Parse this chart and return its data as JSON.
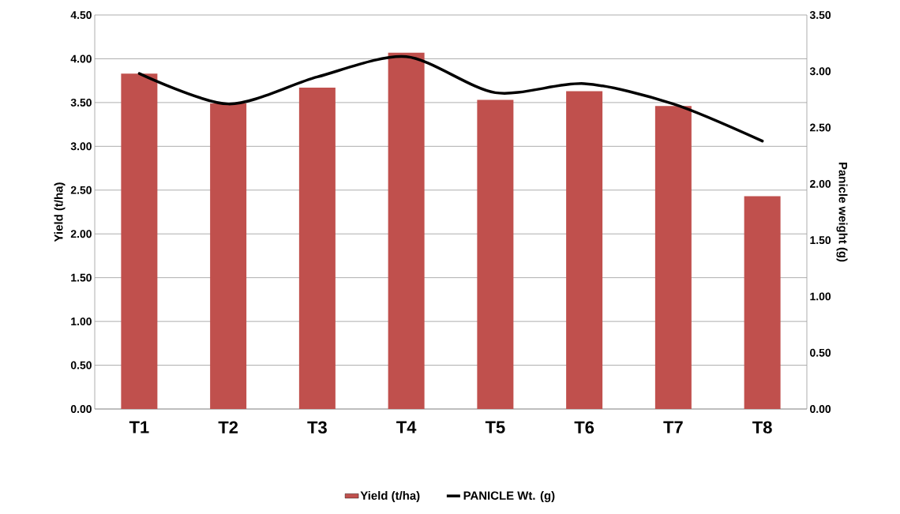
{
  "chart_data": {
    "type": "bar",
    "categories": [
      "T1",
      "T2",
      "T3",
      "T4",
      "T5",
      "T6",
      "T7",
      "T8"
    ],
    "series": [
      {
        "name": "Yield (t/ha)",
        "color": "#c0504d",
        "values": [
          3.83,
          3.49,
          3.67,
          4.07,
          3.53,
          3.63,
          3.46,
          2.43
        ]
      },
      {
        "name": "PANICLE Wt. (g)",
        "type": "line",
        "axis": "y2",
        "color": "#000000",
        "values": [
          2.98,
          2.71,
          2.95,
          3.13,
          2.81,
          2.89,
          2.71,
          2.38
        ]
      }
    ],
    "ylabel": "Yield (t/ha)",
    "y2label": "Panicle weight (g)",
    "ylim": [
      0,
      4.5
    ],
    "yticks": [
      {
        "value": 0,
        "label": "0.00"
      },
      {
        "value": 0.5,
        "label": "0.50"
      },
      {
        "value": 1,
        "label": "1.00"
      },
      {
        "value": 1.5,
        "label": "1.50"
      },
      {
        "value": 2,
        "label": "2.00"
      },
      {
        "value": 2.5,
        "label": "2.50"
      },
      {
        "value": 3,
        "label": "3.00"
      },
      {
        "value": 3.5,
        "label": "3.50"
      },
      {
        "value": 4,
        "label": "4.00"
      },
      {
        "value": 4.5,
        "label": "4.50"
      }
    ],
    "y2lim": [
      0,
      3.5
    ],
    "y2ticks": [
      {
        "value": 0,
        "label": "0.00"
      },
      {
        "value": 0.5,
        "label": "0.50"
      },
      {
        "value": 1,
        "label": "1.00"
      },
      {
        "value": 1.5,
        "label": "1.50"
      },
      {
        "value": 2,
        "label": "2.00"
      },
      {
        "value": 2.5,
        "label": "2.50"
      },
      {
        "value": 3,
        "label": "3.00"
      },
      {
        "value": 3.5,
        "label": "3.50"
      }
    ],
    "grid": "y",
    "legend": "bottom"
  }
}
